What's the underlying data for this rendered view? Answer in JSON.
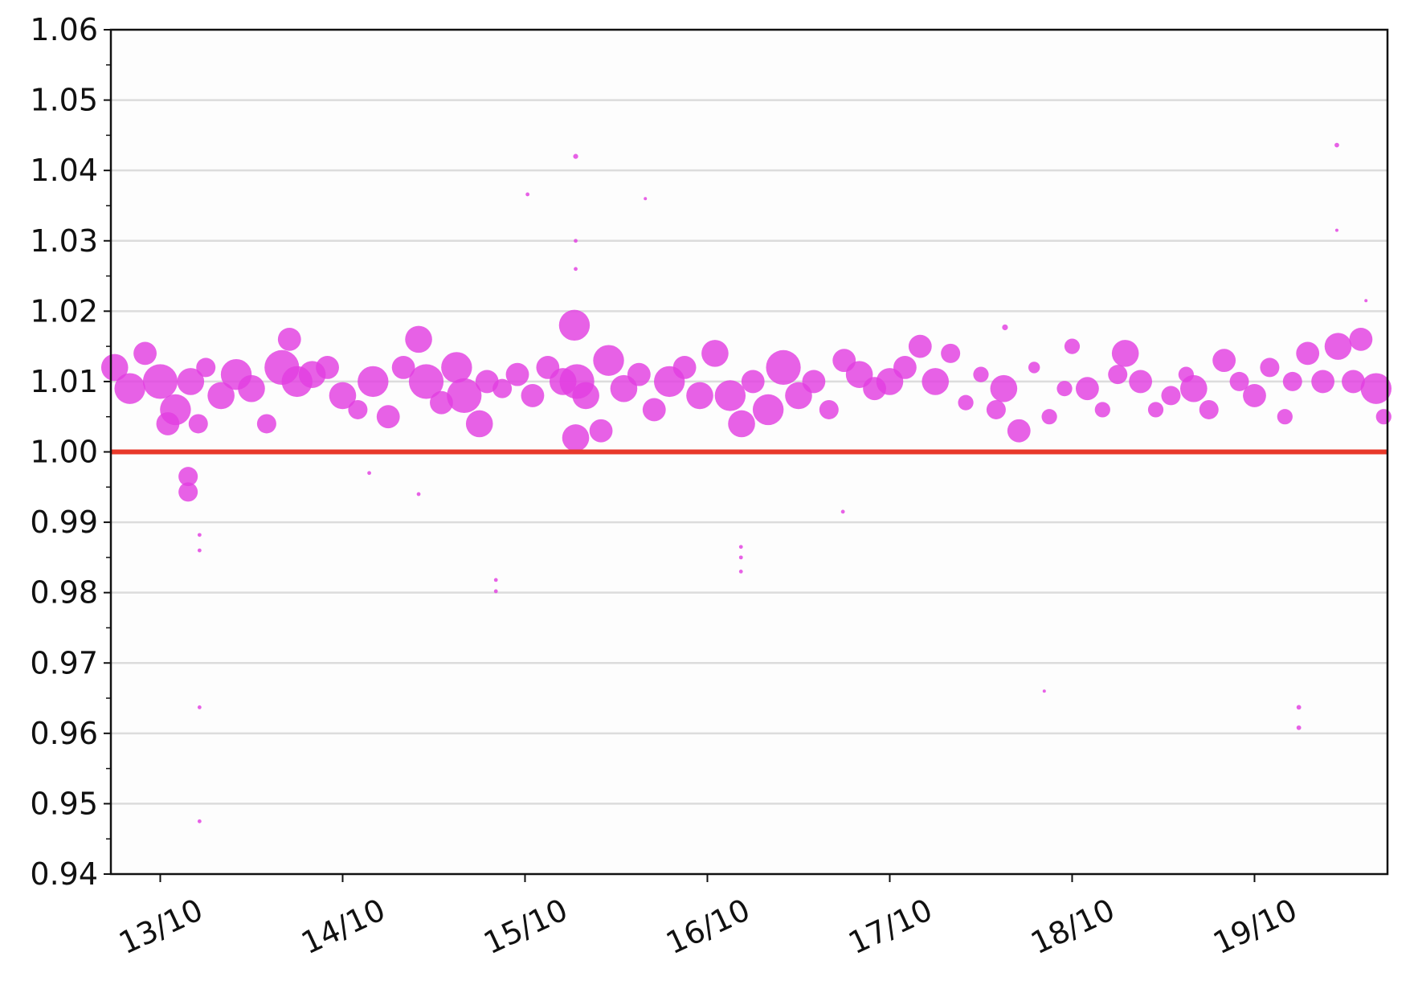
{
  "chart_data": {
    "type": "scatter",
    "title": "",
    "xlabel": "",
    "ylabel": "",
    "x_format": "DD/MM HH:MM",
    "xlim": [
      "12/10 17:30",
      "19/10 17:30"
    ],
    "ylim": [
      0.94,
      1.06
    ],
    "x_ticks": [
      "13/10",
      "14/10",
      "15/10",
      "16/10",
      "17/10",
      "18/10",
      "19/10"
    ],
    "y_ticks": [
      "0.94",
      "0.95",
      "0.96",
      "0.97",
      "0.98",
      "0.99",
      "1.00",
      "1.01",
      "1.02",
      "1.03",
      "1.04",
      "1.05",
      "1.06"
    ],
    "grid": "horizontal",
    "marker_color": "#e23ee0",
    "reference_line": {
      "y": 1.0,
      "color": "#e8392a"
    },
    "points": [
      [
        "12/10 18:00",
        1.012,
        7
      ],
      [
        "12/10 20:00",
        1.009,
        8
      ],
      [
        "12/10 22:00",
        1.014,
        6
      ],
      [
        "13/10 00:00",
        1.01,
        9
      ],
      [
        "13/10 01:00",
        1.004,
        6
      ],
      [
        "13/10 02:00",
        1.006,
        8
      ],
      [
        "13/10 04:00",
        1.01,
        7
      ],
      [
        "13/10 05:00",
        1.004,
        5
      ],
      [
        "13/10 06:00",
        1.012,
        5
      ],
      [
        "13/10 08:00",
        1.008,
        7
      ],
      [
        "13/10 10:00",
        1.011,
        8
      ],
      [
        "13/10 12:00",
        1.009,
        7
      ],
      [
        "13/10 14:00",
        1.004,
        5
      ],
      [
        "13/10 16:00",
        1.012,
        9
      ],
      [
        "13/10 17:00",
        1.016,
        6
      ],
      [
        "13/10 18:00",
        1.01,
        8
      ],
      [
        "13/10 20:00",
        1.011,
        7
      ],
      [
        "13/10 22:00",
        1.012,
        6
      ],
      [
        "14/10 00:00",
        1.008,
        7
      ],
      [
        "14/10 02:00",
        1.006,
        5
      ],
      [
        "14/10 04:00",
        1.01,
        8
      ],
      [
        "14/10 06:00",
        1.005,
        6
      ],
      [
        "14/10 08:00",
        1.012,
        6
      ],
      [
        "14/10 10:00",
        1.016,
        7
      ],
      [
        "14/10 11:00",
        1.01,
        9
      ],
      [
        "14/10 13:00",
        1.007,
        6
      ],
      [
        "14/10 15:00",
        1.012,
        8
      ],
      [
        "14/10 16:00",
        1.008,
        9
      ],
      [
        "14/10 18:00",
        1.004,
        7
      ],
      [
        "14/10 19:00",
        1.01,
        6
      ],
      [
        "14/10 21:00",
        1.009,
        5
      ],
      [
        "14/10 23:00",
        1.011,
        6
      ],
      [
        "15/10 01:00",
        1.008,
        6
      ],
      [
        "15/10 03:00",
        1.012,
        6
      ],
      [
        "15/10 05:00",
        1.01,
        7
      ],
      [
        "15/10 06:30",
        1.018,
        8
      ],
      [
        "15/10 06:40",
        1.002,
        7
      ],
      [
        "15/10 06:50",
        1.01,
        9
      ],
      [
        "15/10 08:00",
        1.008,
        7
      ],
      [
        "15/10 10:00",
        1.003,
        6
      ],
      [
        "15/10 11:00",
        1.013,
        8
      ],
      [
        "15/10 13:00",
        1.009,
        7
      ],
      [
        "15/10 15:00",
        1.011,
        6
      ],
      [
        "15/10 17:00",
        1.006,
        6
      ],
      [
        "15/10 19:00",
        1.01,
        8
      ],
      [
        "15/10 21:00",
        1.012,
        6
      ],
      [
        "15/10 23:00",
        1.008,
        7
      ],
      [
        "16/10 01:00",
        1.014,
        7
      ],
      [
        "16/10 03:00",
        1.008,
        8
      ],
      [
        "16/10 04:30",
        1.004,
        7
      ],
      [
        "16/10 06:00",
        1.01,
        6
      ],
      [
        "16/10 08:00",
        1.006,
        8
      ],
      [
        "16/10 10:00",
        1.012,
        9
      ],
      [
        "16/10 12:00",
        1.008,
        7
      ],
      [
        "16/10 14:00",
        1.01,
        6
      ],
      [
        "16/10 16:00",
        1.006,
        5
      ],
      [
        "16/10 18:00",
        1.013,
        6
      ],
      [
        "16/10 20:00",
        1.011,
        7
      ],
      [
        "16/10 22:00",
        1.009,
        6
      ],
      [
        "17/10 00:00",
        1.01,
        7
      ],
      [
        "17/10 02:00",
        1.012,
        6
      ],
      [
        "17/10 04:00",
        1.015,
        6
      ],
      [
        "17/10 06:00",
        1.01,
        7
      ],
      [
        "17/10 08:00",
        1.014,
        5
      ],
      [
        "17/10 10:00",
        1.007,
        4
      ],
      [
        "17/10 12:00",
        1.011,
        4
      ],
      [
        "17/10 14:00",
        1.006,
        5
      ],
      [
        "17/10 15:00",
        1.009,
        7
      ],
      [
        "17/10 17:00",
        1.003,
        6
      ],
      [
        "17/10 19:00",
        1.012,
        3
      ],
      [
        "17/10 21:00",
        1.005,
        4
      ],
      [
        "17/10 23:00",
        1.009,
        4
      ],
      [
        "18/10 00:00",
        1.015,
        4
      ],
      [
        "18/10 02:00",
        1.009,
        6
      ],
      [
        "18/10 04:00",
        1.006,
        4
      ],
      [
        "18/10 06:00",
        1.011,
        5
      ],
      [
        "18/10 07:00",
        1.014,
        7
      ],
      [
        "18/10 09:00",
        1.01,
        6
      ],
      [
        "18/10 11:00",
        1.006,
        4
      ],
      [
        "18/10 13:00",
        1.008,
        5
      ],
      [
        "18/10 15:00",
        1.011,
        4
      ],
      [
        "18/10 16:00",
        1.009,
        7
      ],
      [
        "18/10 18:00",
        1.006,
        5
      ],
      [
        "18/10 20:00",
        1.013,
        6
      ],
      [
        "18/10 22:00",
        1.01,
        5
      ],
      [
        "19/10 00:00",
        1.008,
        6
      ],
      [
        "19/10 02:00",
        1.012,
        5
      ],
      [
        "19/10 04:00",
        1.005,
        4
      ],
      [
        "19/10 05:00",
        1.01,
        5
      ],
      [
        "19/10 07:00",
        1.014,
        6
      ],
      [
        "19/10 09:00",
        1.01,
        6
      ],
      [
        "19/10 11:00",
        1.015,
        7
      ],
      [
        "19/10 13:00",
        1.01,
        6
      ],
      [
        "19/10 14:00",
        1.016,
        6
      ],
      [
        "19/10 16:00",
        1.009,
        8
      ],
      [
        "19/10 17:00",
        1.005,
        4
      ],
      [
        "13/10 03:40",
        0.9965,
        5
      ],
      [
        "13/10 03:40",
        0.9943,
        5
      ],
      [
        "13/10 05:10",
        0.9882,
        1
      ],
      [
        "13/10 05:10",
        0.986,
        1
      ],
      [
        "13/10 05:10",
        0.9637,
        1
      ],
      [
        "13/10 05:10",
        0.9475,
        1
      ],
      [
        "14/10 03:30",
        0.997,
        1
      ],
      [
        "14/10 10:00",
        0.994,
        1
      ],
      [
        "14/10 20:10",
        0.9818,
        1
      ],
      [
        "14/10 20:10",
        0.9802,
        1
      ],
      [
        "15/10 00:20",
        1.0366,
        1
      ],
      [
        "15/10 06:40",
        1.042,
        1.3
      ],
      [
        "15/10 06:40",
        1.03,
        1
      ],
      [
        "15/10 06:40",
        1.026,
        1
      ],
      [
        "15/10 15:50",
        1.036,
        0.8
      ],
      [
        "16/10 04:25",
        0.9865,
        1
      ],
      [
        "16/10 04:25",
        0.985,
        1
      ],
      [
        "16/10 04:25",
        0.983,
        1
      ],
      [
        "16/10 17:50",
        0.9915,
        1
      ],
      [
        "17/10 15:10",
        1.0177,
        1.5
      ],
      [
        "17/10 20:20",
        0.966,
        0.7
      ],
      [
        "19/10 05:50",
        0.9637,
        1.2
      ],
      [
        "19/10 05:50",
        0.9608,
        1.2
      ],
      [
        "19/10 10:50",
        1.0436,
        1.2
      ],
      [
        "19/10 10:50",
        1.0315,
        0.8
      ],
      [
        "19/10 14:40",
        1.0215,
        0.7
      ]
    ]
  }
}
